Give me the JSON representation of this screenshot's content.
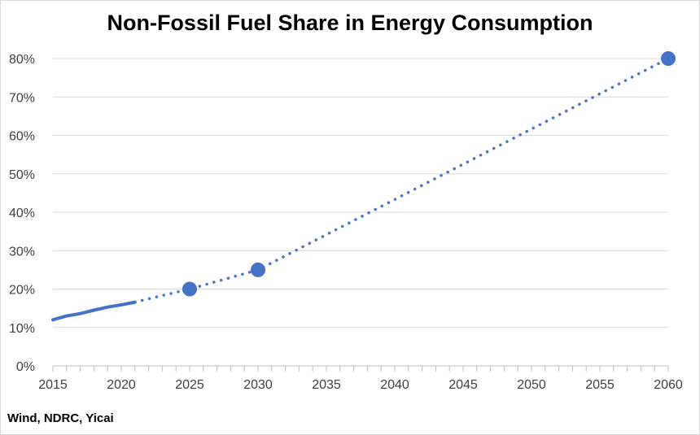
{
  "chart_data": {
    "type": "line",
    "title": "Non-Fossil Fuel Share in Energy Consumption",
    "source": "Wind, NDRC, Yicai",
    "xlabel": "",
    "ylabel": "",
    "xlim": [
      2015,
      2060
    ],
    "ylim": [
      0,
      80
    ],
    "x_ticks": [
      2015,
      2020,
      2025,
      2030,
      2035,
      2040,
      2045,
      2050,
      2055,
      2060
    ],
    "x_tick_labels": [
      "2015",
      "2020",
      "2025",
      "2030",
      "2035",
      "2040",
      "2045",
      "2050",
      "2055",
      "2060"
    ],
    "y_ticks": [
      0,
      10,
      20,
      30,
      40,
      50,
      60,
      70,
      80
    ],
    "y_tick_labels": [
      "0%",
      "10%",
      "20%",
      "30%",
      "40%",
      "50%",
      "60%",
      "70%",
      "80%"
    ],
    "grid": true,
    "legend": "none",
    "color": "#4472c4",
    "series": [
      {
        "style": "solid",
        "x": [
          2015,
          2016,
          2017,
          2018,
          2019,
          2020,
          2021
        ],
        "y": [
          12.0,
          13.0,
          13.6,
          14.5,
          15.3,
          15.9,
          16.6
        ]
      },
      {
        "style": "dotted",
        "x": [
          2021,
          2025,
          2030,
          2060
        ],
        "y": [
          16.6,
          20,
          25,
          80
        ]
      }
    ],
    "targets": [
      {
        "x": 2025,
        "y": 20
      },
      {
        "x": 2030,
        "y": 25
      },
      {
        "x": 2060,
        "y": 80
      }
    ]
  }
}
